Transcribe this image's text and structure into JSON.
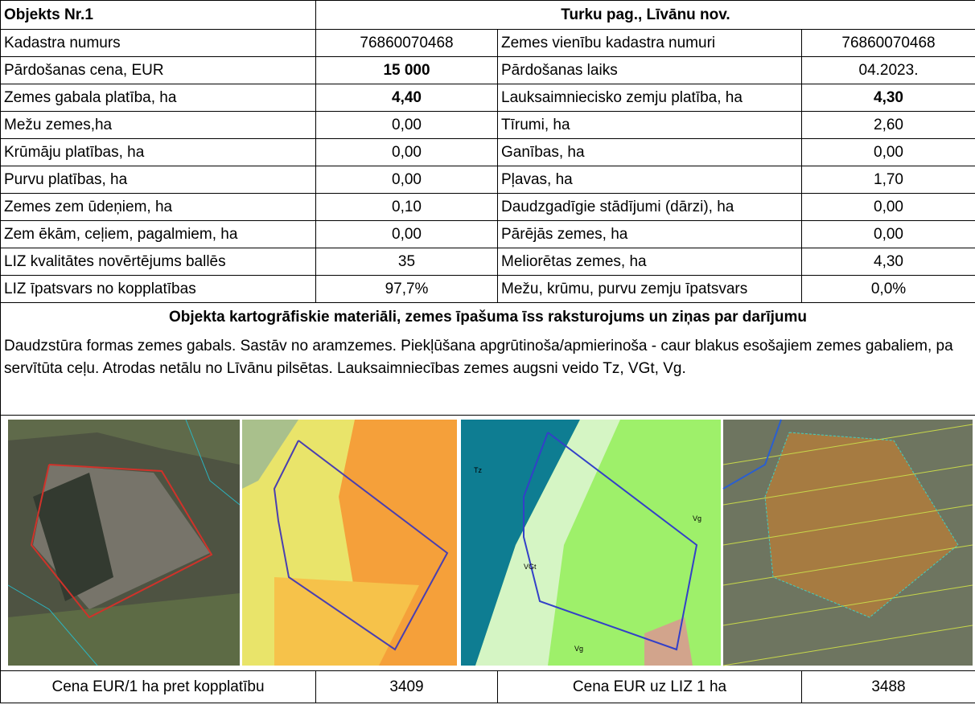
{
  "header": {
    "title": "Objekts Nr.1",
    "location": "Turku pag., Līvānu nov."
  },
  "table": {
    "rows": [
      [
        "Kadastra numurs",
        "76860070468",
        "Zemes vienību kadastra numuri",
        "76860070468"
      ],
      [
        "Pārdošanas cena, EUR",
        "15 000",
        "Pārdošanas laiks",
        "04.2023."
      ],
      [
        "Zemes gabala platība, ha",
        "4,40",
        "Lauksaimniecisko zemju platība, ha",
        "4,30"
      ],
      [
        "Mežu zemes,ha",
        "0,00",
        "Tīrumi, ha",
        "2,60"
      ],
      [
        "Krūmāju platības, ha",
        "0,00",
        "Ganības, ha",
        "0,00"
      ],
      [
        "Purvu platības, ha",
        "0,00",
        "Pļavas, ha",
        "1,70"
      ],
      [
        "Zemes zem ūdeņiem, ha",
        "0,10",
        "Daudzgadīgie stādījumi (dārzi), ha",
        "0,00"
      ],
      [
        "Zem ēkām, ceļiem, pagalmiem, ha",
        "0,00",
        "Pārējās zemes, ha",
        "0,00"
      ],
      [
        "LIZ kvalitātes novērtējums ballēs",
        "35",
        "Meliorētas zemes, ha",
        "4,30"
      ],
      [
        "LIZ īpatsvars no kopplatības",
        "97,7%",
        "Mežu, krūmu, purvu zemju īpatsvars",
        "0,0%"
      ]
    ]
  },
  "section": {
    "title": "Objekta kartogrāfiskie materiāli, zemes īpašuma īss raksturojums un ziņas par darījumu",
    "description": "Daudzstūra formas zemes gabals. Sastāv no aramzemes. Piekļūšana apgrūtinoša/apmierinoša - caur blakus esošajiem zemes gabaliem, pa servītūta ceļu. Atrodas netālu no Līvānu pilsētas. Lauksaimniecības zemes augsni veido Tz, VGt, Vg."
  },
  "maps": {
    "soil_labels": [
      "Tz",
      "VGt",
      "Vg",
      "Vg"
    ]
  },
  "footer": [
    "Cena EUR/1 ha pret kopplatību",
    "3409",
    "Cena EUR uz LIZ 1 ha",
    "3488"
  ]
}
